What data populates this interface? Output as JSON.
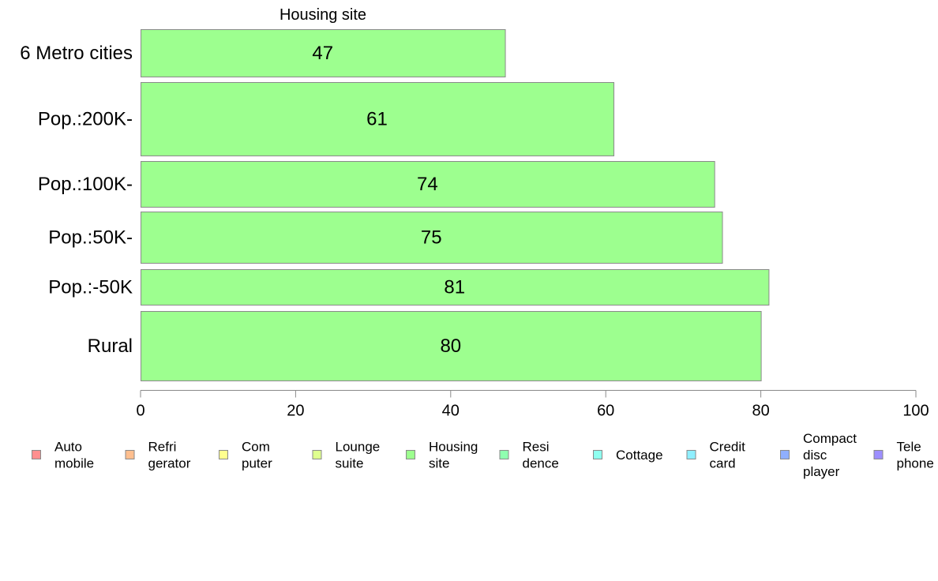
{
  "chart_data": {
    "type": "bar",
    "orientation": "horizontal",
    "title": "Housing site",
    "categories": [
      "6 Metro cities",
      "Pop.:200K-",
      "Pop.:100K-",
      "Pop.:50K-",
      "Pop.:-50K",
      "Rural"
    ],
    "series": [
      {
        "name": "Housing site",
        "values": [
          47,
          61,
          74,
          75,
          81,
          80
        ],
        "color": "#9dff8f"
      }
    ],
    "data_labels": [
      "47",
      "61",
      "74",
      "75",
      "81",
      "80"
    ],
    "xlim": [
      0,
      100
    ],
    "xticks": [
      "0",
      "20",
      "40",
      "60",
      "80",
      "100"
    ],
    "xlabel": "",
    "ylabel": "",
    "grid": false,
    "legend_position": "bottom",
    "legend": [
      {
        "lines": [
          "Auto",
          "mobile"
        ],
        "color": "#ff8f8f"
      },
      {
        "lines": [
          "Refri",
          "gerator"
        ],
        "color": "#ffbf8f"
      },
      {
        "lines": [
          "Com",
          "puter"
        ],
        "color": "#ffff8f"
      },
      {
        "lines": [
          "Lounge",
          "suite"
        ],
        "color": "#dfff8f"
      },
      {
        "lines": [
          "Housing",
          "site"
        ],
        "color": "#9dff8f"
      },
      {
        "lines": [
          "Resi",
          "dence"
        ],
        "color": "#8fffb0"
      },
      {
        "lines": [
          "Cottage"
        ],
        "color": "#8fffef"
      },
      {
        "lines": [
          "Credit",
          "card"
        ],
        "color": "#8fefff"
      },
      {
        "lines": [
          "Compact",
          "disc",
          "player"
        ],
        "color": "#8fafff"
      },
      {
        "lines": [
          "Tele",
          "phone"
        ],
        "color": "#9d8fff"
      }
    ]
  }
}
